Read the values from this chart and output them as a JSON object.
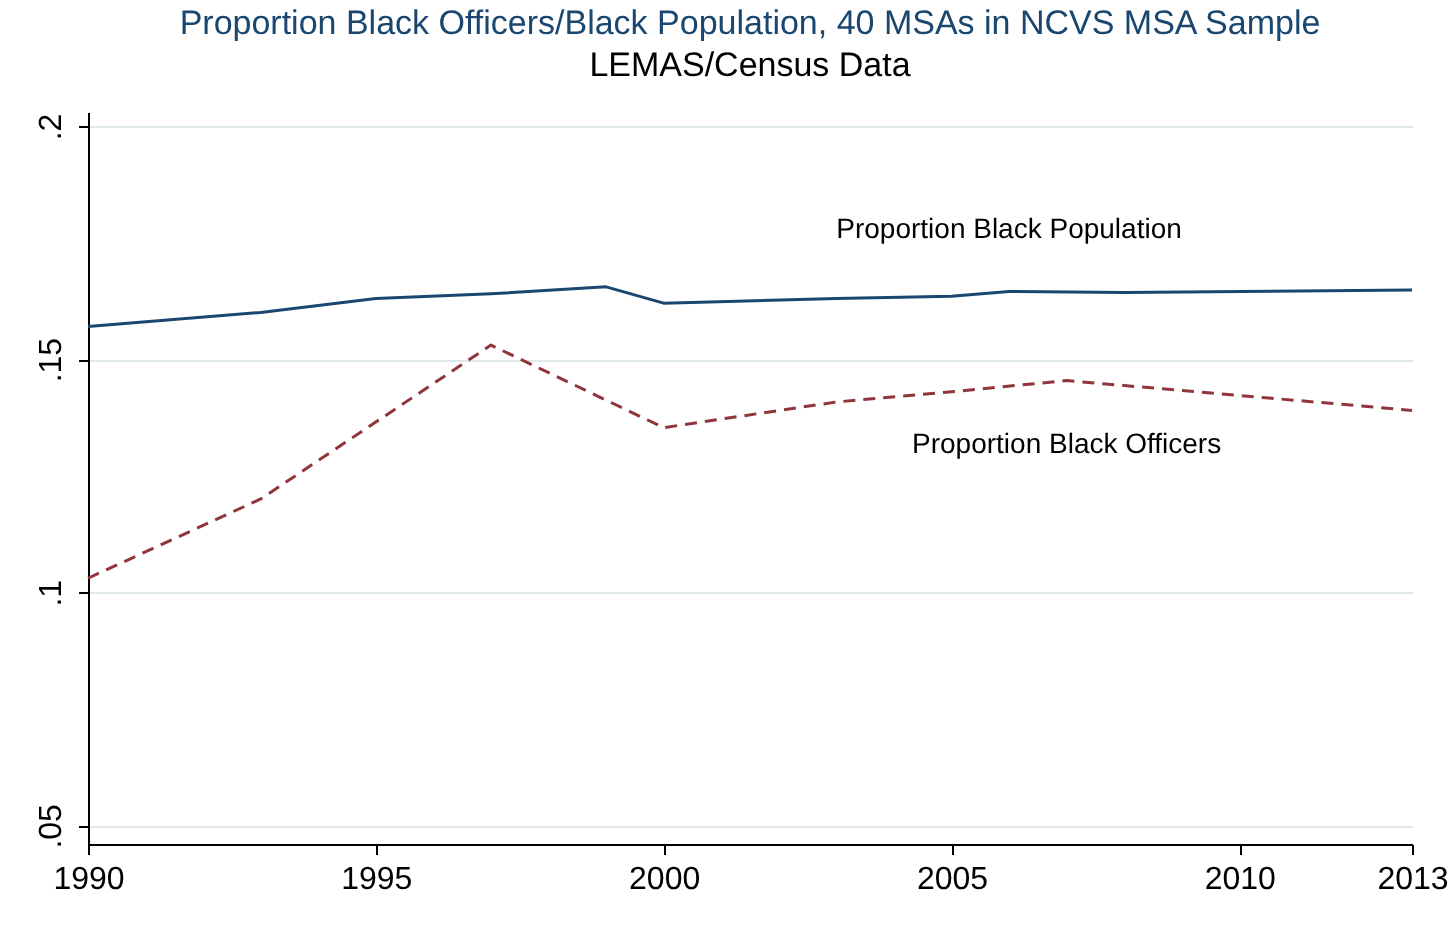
{
  "chart_data": {
    "type": "line",
    "title": "Proportion Black Officers/Black Population, 40 MSAs in NCVS MSA Sample",
    "subtitle": "LEMAS/Census Data",
    "xlim": [
      1990,
      2013
    ],
    "xticks": [
      1990,
      1995,
      2000,
      2005,
      2010,
      2013
    ],
    "ylim": [
      0.046,
      0.203
    ],
    "yticks": [
      {
        "value": 0.05,
        "label": ".05"
      },
      {
        "value": 0.1,
        "label": ".1"
      },
      {
        "value": 0.15,
        "label": ".15"
      },
      {
        "value": 0.2,
        "label": ".2"
      }
    ],
    "grid": "y",
    "marker": "none",
    "series": [
      {
        "name": "Proportion Black Population",
        "color": "#1a476f",
        "line_style": "solid",
        "x": [
          1990,
          1993,
          1995,
          1997,
          1999,
          2000,
          2003,
          2005,
          2006,
          2008,
          2013
        ],
        "values": [
          0.157,
          0.16,
          0.163,
          0.164,
          0.1655,
          0.162,
          0.163,
          0.1635,
          0.1645,
          0.1643,
          0.1648
        ]
      },
      {
        "name": "Proportion Black Officers",
        "color": "#90353b",
        "line_style": "dashed",
        "x": [
          1990,
          1993,
          1997,
          2000,
          2003,
          2005,
          2007,
          2013
        ],
        "values": [
          0.103,
          0.12,
          0.153,
          0.1353,
          0.1408,
          0.143,
          0.1454,
          0.139
        ]
      }
    ]
  }
}
